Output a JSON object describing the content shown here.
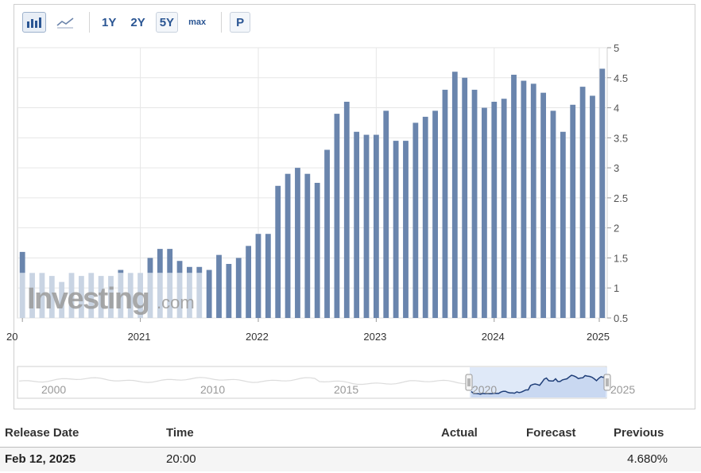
{
  "toolbar": {
    "bar_chart_icon": "bar-chart-icon",
    "line_chart_icon": "line-chart-icon",
    "range_1y": "1Y",
    "range_2y": "2Y",
    "range_5y": "5Y",
    "range_max": "max",
    "p_button": "P"
  },
  "watermark": {
    "brand": "Investing",
    "suffix": ".com"
  },
  "colors": {
    "bar": "#6a85ad",
    "bar_faded": "#c9d4e3",
    "navigator_fill": "#c7d6ef",
    "navigator_line": "#1f3e78",
    "grid": "#e6e6e6"
  },
  "chart_data": {
    "type": "bar",
    "x_start": "2020-01",
    "frequency": "monthly",
    "x_tick_labels": [
      "20",
      "2021",
      "2022",
      "2023",
      "2024",
      "2025"
    ],
    "y_tick_labels": [
      "0.5",
      "1",
      "1.5",
      "2",
      "2.5",
      "3",
      "3.5",
      "4",
      "4.5",
      "5"
    ],
    "ylim": [
      0.5,
      5
    ],
    "y_axis_side": "right",
    "grid": true,
    "values": [
      1.6,
      1.25,
      1.25,
      1.2,
      1.1,
      1.25,
      1.2,
      1.25,
      1.2,
      1.2,
      1.3,
      1.25,
      1.25,
      1.5,
      1.65,
      1.65,
      1.45,
      1.35,
      1.35,
      1.3,
      1.55,
      1.4,
      1.5,
      1.7,
      1.9,
      1.9,
      2.7,
      2.9,
      3.0,
      2.9,
      2.75,
      3.3,
      3.9,
      4.1,
      3.6,
      3.55,
      3.55,
      3.95,
      3.45,
      3.45,
      3.75,
      3.85,
      3.95,
      4.3,
      4.6,
      4.5,
      4.3,
      4.0,
      4.1,
      4.15,
      4.55,
      4.45,
      4.4,
      4.25,
      3.95,
      3.6,
      4.05,
      4.35,
      4.2,
      4.65
    ]
  },
  "navigator": {
    "labels": [
      "2000",
      "2010",
      "2015",
      "2020",
      "2025"
    ]
  },
  "table": {
    "headers": {
      "release_date": "Release Date",
      "time": "Time",
      "actual": "Actual",
      "forecast": "Forecast",
      "previous": "Previous"
    },
    "rows": [
      {
        "release_date": "Feb 12, 2025",
        "time": "20:00",
        "actual": "",
        "forecast": "",
        "previous": "4.680%"
      }
    ]
  }
}
